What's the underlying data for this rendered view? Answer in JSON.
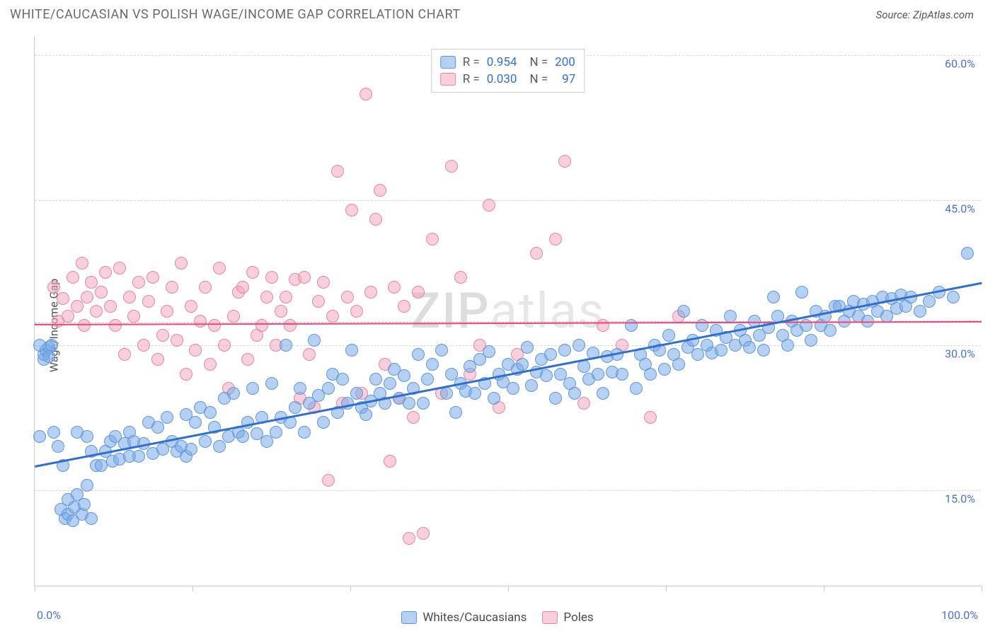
{
  "header": {
    "title": "WHITE/CAUCASIAN VS POLISH WAGE/INCOME GAP CORRELATION CHART",
    "source": "Source: ZipAtlas.com"
  },
  "chart": {
    "ylabel": "Wage/Income Gap",
    "watermark_z": "ZIP",
    "watermark_rest": "atlas",
    "xlim": [
      0,
      100
    ],
    "ylim": [
      5,
      62
    ],
    "ytick_labels": [
      "15.0%",
      "30.0%",
      "45.0%",
      "60.0%"
    ],
    "ytick_values": [
      15,
      30,
      45,
      60
    ],
    "xtick_values": [
      0,
      16.67,
      33.33,
      50,
      66.67,
      83.33,
      100
    ],
    "x_left_label": "0.0%",
    "x_right_label": "100.0%",
    "marker_radius": 9,
    "background": "#ffffff",
    "grid_color": "#d8d8d8",
    "series": [
      {
        "key": "blue",
        "label": "Whites/Caucasians",
        "fill": "rgba(120,169,231,0.55)",
        "stroke": "#5f98d8",
        "r_label": "R =",
        "r_value": "0.954",
        "n_label": "N =",
        "n_value": "200",
        "trend": {
          "x1": 0,
          "y1": 17.5,
          "x2": 100,
          "y2": 36.5,
          "color": "#2f6fd0",
          "width": 3,
          "dash": false
        },
        "points": [
          [
            0.5,
            20.5
          ],
          [
            1,
            28.5
          ],
          [
            1,
            29
          ],
          [
            1.2,
            29.5
          ],
          [
            1.5,
            29.8
          ],
          [
            1.5,
            28.8
          ],
          [
            1.8,
            30
          ],
          [
            0.5,
            30
          ],
          [
            2,
            21
          ],
          [
            2.5,
            19.5
          ],
          [
            2.8,
            13
          ],
          [
            3,
            17.5
          ],
          [
            3.2,
            12
          ],
          [
            3.5,
            14
          ],
          [
            3.5,
            12.5
          ],
          [
            4,
            11.8
          ],
          [
            4.2,
            13.2
          ],
          [
            4.5,
            14.5
          ],
          [
            4.5,
            21
          ],
          [
            5,
            12.5
          ],
          [
            5.2,
            13.5
          ],
          [
            5.5,
            15.5
          ],
          [
            5.5,
            20.5
          ],
          [
            6,
            12
          ],
          [
            6,
            19
          ],
          [
            6.5,
            17.5
          ],
          [
            7,
            17.5
          ],
          [
            7.5,
            19
          ],
          [
            8,
            20
          ],
          [
            8.2,
            18
          ],
          [
            8.5,
            20.5
          ],
          [
            9,
            18.2
          ],
          [
            9.5,
            19.8
          ],
          [
            10,
            18.5
          ],
          [
            10,
            21
          ],
          [
            10.5,
            20
          ],
          [
            11,
            18.5
          ],
          [
            11.5,
            19.8
          ],
          [
            12,
            22
          ],
          [
            12.5,
            18.8
          ],
          [
            13,
            21.5
          ],
          [
            13.5,
            19.2
          ],
          [
            14,
            22.5
          ],
          [
            14.5,
            20
          ],
          [
            15,
            19
          ],
          [
            15.5,
            19.5
          ],
          [
            16,
            22.8
          ],
          [
            16,
            18.5
          ],
          [
            16.5,
            19.2
          ],
          [
            17,
            22
          ],
          [
            17.5,
            23.5
          ],
          [
            18,
            20
          ],
          [
            18.5,
            23
          ],
          [
            19,
            21.5
          ],
          [
            19.5,
            19.5
          ],
          [
            20,
            24.5
          ],
          [
            20.5,
            20.5
          ],
          [
            21,
            25
          ],
          [
            21.5,
            21
          ],
          [
            22,
            20.5
          ],
          [
            22.5,
            22
          ],
          [
            23,
            25.5
          ],
          [
            23.5,
            20.8
          ],
          [
            24,
            22.5
          ],
          [
            24.5,
            20
          ],
          [
            25,
            26
          ],
          [
            25.5,
            21
          ],
          [
            26,
            22.5
          ],
          [
            26.5,
            30
          ],
          [
            27,
            22
          ],
          [
            27.5,
            23.5
          ],
          [
            28,
            25.5
          ],
          [
            28.5,
            21
          ],
          [
            29,
            24
          ],
          [
            29.5,
            30.5
          ],
          [
            30,
            24.8
          ],
          [
            30.5,
            22
          ],
          [
            31,
            25.5
          ],
          [
            31.5,
            27
          ],
          [
            32,
            23
          ],
          [
            32.5,
            26.5
          ],
          [
            33,
            24
          ],
          [
            33.5,
            29.5
          ],
          [
            34,
            25
          ],
          [
            34.5,
            23.5
          ],
          [
            35,
            22.8
          ],
          [
            35.5,
            24.2
          ],
          [
            36,
            26.5
          ],
          [
            36.5,
            25
          ],
          [
            37,
            24
          ],
          [
            37.5,
            26
          ],
          [
            38,
            27.5
          ],
          [
            38.5,
            24.5
          ],
          [
            39,
            26.8
          ],
          [
            39.5,
            24
          ],
          [
            40,
            25.5
          ],
          [
            40.5,
            29
          ],
          [
            41,
            24
          ],
          [
            41.5,
            26.5
          ],
          [
            42,
            28
          ],
          [
            43,
            29.5
          ],
          [
            43.5,
            25
          ],
          [
            44,
            27
          ],
          [
            44.5,
            23
          ],
          [
            45,
            26
          ],
          [
            45.5,
            25.2
          ],
          [
            46,
            27.8
          ],
          [
            46.5,
            25
          ],
          [
            47,
            28.5
          ],
          [
            47.5,
            26
          ],
          [
            48,
            29.3
          ],
          [
            48.5,
            24.5
          ],
          [
            49,
            27
          ],
          [
            49.5,
            26.2
          ],
          [
            50,
            28
          ],
          [
            50.5,
            25.5
          ],
          [
            51,
            27.5
          ],
          [
            51.5,
            28
          ],
          [
            52,
            29.8
          ],
          [
            52.5,
            25.8
          ],
          [
            53,
            27.2
          ],
          [
            53.5,
            28.5
          ],
          [
            54,
            26.8
          ],
          [
            54.5,
            29
          ],
          [
            55,
            24.5
          ],
          [
            55.5,
            27
          ],
          [
            56,
            29.5
          ],
          [
            56.5,
            26
          ],
          [
            57,
            25
          ],
          [
            57.5,
            30
          ],
          [
            58,
            27.8
          ],
          [
            58.5,
            26.5
          ],
          [
            59,
            29.2
          ],
          [
            59.5,
            27
          ],
          [
            60,
            25
          ],
          [
            60.5,
            28.8
          ],
          [
            61,
            27.2
          ],
          [
            61.5,
            29
          ],
          [
            62,
            27
          ],
          [
            63,
            32
          ],
          [
            63.5,
            25.5
          ],
          [
            64,
            29
          ],
          [
            64.5,
            28
          ],
          [
            65,
            27
          ],
          [
            65.5,
            30
          ],
          [
            66,
            29.5
          ],
          [
            66.5,
            27.5
          ],
          [
            67,
            31
          ],
          [
            67.5,
            29
          ],
          [
            68,
            28
          ],
          [
            68.5,
            33.5
          ],
          [
            69,
            29.8
          ],
          [
            69.5,
            30.5
          ],
          [
            70,
            29
          ],
          [
            70.5,
            32
          ],
          [
            71,
            30
          ],
          [
            71.5,
            29.2
          ],
          [
            72,
            31.5
          ],
          [
            72.5,
            29.5
          ],
          [
            73,
            30.8
          ],
          [
            73.5,
            33
          ],
          [
            74,
            30
          ],
          [
            74.5,
            31.5
          ],
          [
            75,
            30.5
          ],
          [
            75.5,
            29.8
          ],
          [
            76,
            32.5
          ],
          [
            76.5,
            31
          ],
          [
            77,
            29.5
          ],
          [
            77.5,
            31.8
          ],
          [
            78,
            35
          ],
          [
            78.5,
            33
          ],
          [
            79,
            31
          ],
          [
            79.5,
            30
          ],
          [
            80,
            32.5
          ],
          [
            80.5,
            31.5
          ],
          [
            81,
            35.5
          ],
          [
            81.5,
            32
          ],
          [
            82,
            30.5
          ],
          [
            82.5,
            33.5
          ],
          [
            83,
            32
          ],
          [
            83.5,
            33
          ],
          [
            84,
            31.5
          ],
          [
            84.5,
            34
          ],
          [
            85,
            34
          ],
          [
            85.5,
            32.5
          ],
          [
            86,
            33.5
          ],
          [
            86.5,
            34.5
          ],
          [
            87,
            33
          ],
          [
            87.5,
            34.2
          ],
          [
            88,
            32.5
          ],
          [
            88.5,
            34.5
          ],
          [
            89,
            33.5
          ],
          [
            89.5,
            35
          ],
          [
            90,
            33
          ],
          [
            90.5,
            34.8
          ],
          [
            91,
            33.8
          ],
          [
            91.5,
            35.2
          ],
          [
            92,
            34
          ],
          [
            92.5,
            35
          ],
          [
            93.5,
            33.5
          ],
          [
            94.5,
            34.5
          ],
          [
            95.5,
            35.5
          ],
          [
            97,
            35
          ],
          [
            98.5,
            39.5
          ]
        ]
      },
      {
        "key": "pink",
        "label": "Poles",
        "fill": "rgba(245,160,185,0.50)",
        "stroke": "#e585a5",
        "r_label": "R =",
        "r_value": "0.030",
        "n_label": "N =",
        "n_value": "97",
        "trend": {
          "x1": 0,
          "y1": 32.2,
          "x2": 100,
          "y2": 32.5,
          "color": "#e54b7b",
          "width": 2,
          "dash": false
        },
        "dash_line": {
          "x1": 0,
          "y1": 32.3,
          "x2": 100,
          "y2": 32.5,
          "color": "#f2a3b8",
          "width": 1,
          "dash": true
        },
        "points": [
          [
            2,
            36
          ],
          [
            2.5,
            32.5
          ],
          [
            3,
            34.8
          ],
          [
            3.5,
            33
          ],
          [
            4,
            37
          ],
          [
            4.5,
            34
          ],
          [
            5,
            38.5
          ],
          [
            5.2,
            32
          ],
          [
            5.5,
            35
          ],
          [
            6,
            36.5
          ],
          [
            6.5,
            33.5
          ],
          [
            7,
            35.5
          ],
          [
            7.5,
            37.5
          ],
          [
            8,
            34
          ],
          [
            8.5,
            32
          ],
          [
            9,
            38
          ],
          [
            9.5,
            29
          ],
          [
            10,
            35
          ],
          [
            10.5,
            33
          ],
          [
            11,
            36.5
          ],
          [
            11.5,
            30
          ],
          [
            12,
            34.5
          ],
          [
            12.5,
            37
          ],
          [
            13,
            28.5
          ],
          [
            13.5,
            31
          ],
          [
            14,
            33.5
          ],
          [
            14.5,
            36
          ],
          [
            15,
            30.5
          ],
          [
            15.5,
            38.5
          ],
          [
            16,
            27
          ],
          [
            16.5,
            34
          ],
          [
            17,
            29.5
          ],
          [
            17.5,
            32.5
          ],
          [
            18,
            36
          ],
          [
            18.5,
            28
          ],
          [
            19,
            32
          ],
          [
            19.5,
            38
          ],
          [
            20,
            30
          ],
          [
            20.5,
            25.5
          ],
          [
            21,
            33
          ],
          [
            21.5,
            35.5
          ],
          [
            22,
            36
          ],
          [
            22.5,
            28.5
          ],
          [
            23,
            37.5
          ],
          [
            23.5,
            31
          ],
          [
            24,
            32
          ],
          [
            24.5,
            35
          ],
          [
            25,
            37
          ],
          [
            25.5,
            30
          ],
          [
            26,
            33.5
          ],
          [
            26.5,
            35
          ],
          [
            27,
            32
          ],
          [
            27.5,
            36.8
          ],
          [
            28,
            24.5
          ],
          [
            28.5,
            37
          ],
          [
            29,
            29
          ],
          [
            29.5,
            23.5
          ],
          [
            30,
            34.5
          ],
          [
            30.5,
            36.5
          ],
          [
            31,
            16
          ],
          [
            31.5,
            33
          ],
          [
            32,
            48
          ],
          [
            32.5,
            24
          ],
          [
            33,
            35
          ],
          [
            33.5,
            44
          ],
          [
            34,
            33.5
          ],
          [
            34.5,
            25
          ],
          [
            35,
            56
          ],
          [
            35.5,
            35.5
          ],
          [
            36,
            43
          ],
          [
            36.5,
            46
          ],
          [
            37,
            28
          ],
          [
            37.5,
            18
          ],
          [
            38,
            36
          ],
          [
            38.5,
            24.5
          ],
          [
            39,
            34
          ],
          [
            39.5,
            10
          ],
          [
            40,
            22.5
          ],
          [
            40.5,
            35.5
          ],
          [
            41,
            10.5
          ],
          [
            42,
            41
          ],
          [
            43,
            25
          ],
          [
            44,
            48.5
          ],
          [
            45,
            37
          ],
          [
            46,
            27
          ],
          [
            47,
            30
          ],
          [
            48,
            44.5
          ],
          [
            49,
            23.5
          ],
          [
            51,
            29
          ],
          [
            53,
            39.5
          ],
          [
            55,
            41
          ],
          [
            56,
            49
          ],
          [
            58,
            24
          ],
          [
            60,
            32
          ],
          [
            62,
            30
          ],
          [
            65,
            22.5
          ],
          [
            68,
            33
          ]
        ]
      }
    ]
  }
}
